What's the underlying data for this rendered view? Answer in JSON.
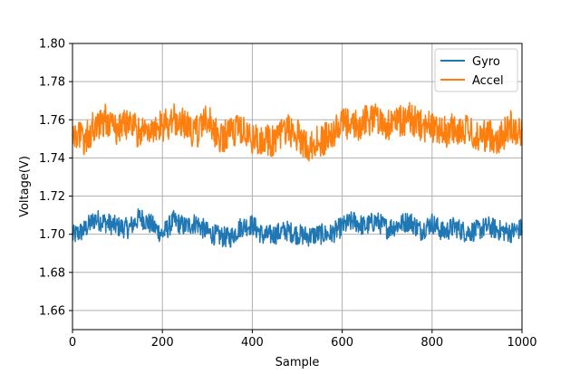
{
  "chart_data": {
    "type": "line",
    "title": "",
    "xlabel": "Sample",
    "ylabel": "Voltage(V)",
    "xlim": [
      0,
      1000
    ],
    "ylim": [
      1.65,
      1.8
    ],
    "xticks": [
      "0",
      "200",
      "400",
      "600",
      "800",
      "1000"
    ],
    "yticks": [
      "1.66",
      "1.68",
      "1.70",
      "1.72",
      "1.74",
      "1.76",
      "1.78",
      "1.80"
    ],
    "grid": true,
    "legend_position": "top-right",
    "series": [
      {
        "name": "Gyro",
        "color": "#1f77b4",
        "x": [
          0,
          25,
          50,
          75,
          100,
          125,
          150,
          175,
          200,
          225,
          250,
          275,
          300,
          325,
          350,
          375,
          400,
          425,
          450,
          475,
          500,
          525,
          550,
          575,
          600,
          625,
          650,
          675,
          700,
          725,
          750,
          775,
          800,
          825,
          850,
          875,
          900,
          925,
          950,
          975,
          1000
        ],
        "y": [
          1.699,
          1.702,
          1.708,
          1.706,
          1.704,
          1.703,
          1.709,
          1.705,
          1.7,
          1.707,
          1.704,
          1.706,
          1.701,
          1.699,
          1.698,
          1.704,
          1.705,
          1.699,
          1.7,
          1.702,
          1.7,
          1.699,
          1.7,
          1.7,
          1.704,
          1.707,
          1.704,
          1.707,
          1.703,
          1.705,
          1.707,
          1.702,
          1.706,
          1.701,
          1.704,
          1.701,
          1.702,
          1.704,
          1.702,
          1.701,
          1.703
        ]
      },
      {
        "name": "Accel",
        "color": "#ff7f0e",
        "x": [
          0,
          25,
          50,
          75,
          100,
          125,
          150,
          175,
          200,
          225,
          250,
          275,
          300,
          325,
          350,
          375,
          400,
          425,
          450,
          475,
          500,
          525,
          550,
          575,
          600,
          625,
          650,
          675,
          700,
          725,
          750,
          775,
          800,
          825,
          850,
          875,
          900,
          925,
          950,
          975,
          1000
        ],
        "y": [
          1.754,
          1.749,
          1.757,
          1.76,
          1.755,
          1.758,
          1.753,
          1.757,
          1.756,
          1.76,
          1.757,
          1.753,
          1.761,
          1.75,
          1.753,
          1.755,
          1.749,
          1.751,
          1.748,
          1.756,
          1.752,
          1.746,
          1.749,
          1.751,
          1.758,
          1.756,
          1.759,
          1.762,
          1.757,
          1.759,
          1.761,
          1.757,
          1.756,
          1.753,
          1.756,
          1.754,
          1.751,
          1.752,
          1.75,
          1.757,
          1.753
        ]
      }
    ]
  }
}
